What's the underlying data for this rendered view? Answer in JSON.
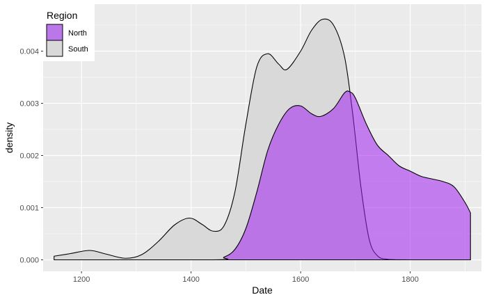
{
  "chart_data": {
    "type": "area",
    "xlabel": "Date",
    "ylabel": "density",
    "xlim": [
      1130,
      1930
    ],
    "ylim": [
      -0.00022,
      0.0049
    ],
    "x_ticks": [
      1200,
      1400,
      1600,
      1800
    ],
    "x_tick_labels": [
      "1200",
      "1400",
      "1600",
      "1800"
    ],
    "y_ticks": [
      0.0,
      0.001,
      0.002,
      0.003,
      0.004
    ],
    "y_tick_labels": [
      "0.000",
      "0.001",
      "0.002",
      "0.003",
      "0.004"
    ],
    "grid": true,
    "legend": {
      "title": "Region",
      "position": "top-left",
      "entries": [
        "North",
        "South"
      ]
    },
    "series": [
      {
        "name": "South",
        "fill": "#d9d9d9",
        "points": [
          [
            1150,
            7e-05
          ],
          [
            1180,
            0.00012
          ],
          [
            1215,
            0.00018
          ],
          [
            1245,
            0.00011
          ],
          [
            1280,
            3e-05
          ],
          [
            1310,
            0.0001
          ],
          [
            1340,
            0.00035
          ],
          [
            1370,
            0.00067
          ],
          [
            1397,
            0.0008
          ],
          [
            1420,
            0.00068
          ],
          [
            1440,
            0.00055
          ],
          [
            1460,
            0.00065
          ],
          [
            1480,
            0.0013
          ],
          [
            1500,
            0.0026
          ],
          [
            1520,
            0.0037
          ],
          [
            1540,
            0.00395
          ],
          [
            1560,
            0.00375
          ],
          [
            1575,
            0.00365
          ],
          [
            1600,
            0.004
          ],
          [
            1620,
            0.0044
          ],
          [
            1640,
            0.00461
          ],
          [
            1660,
            0.0045
          ],
          [
            1680,
            0.0039
          ],
          [
            1695,
            0.0028
          ],
          [
            1710,
            0.0014
          ],
          [
            1725,
            0.0004
          ],
          [
            1740,
            8e-05
          ],
          [
            1760,
            1e-05
          ],
          [
            1800,
            0.0
          ],
          [
            1910,
            0.0
          ]
        ]
      },
      {
        "name": "North",
        "fill": "#a020f0",
        "points": [
          [
            1150,
            0.0
          ],
          [
            1440,
            0.0
          ],
          [
            1460,
            5e-05
          ],
          [
            1480,
            0.0002
          ],
          [
            1500,
            0.0006
          ],
          [
            1520,
            0.0013
          ],
          [
            1540,
            0.0021
          ],
          [
            1560,
            0.0026
          ],
          [
            1580,
            0.0029
          ],
          [
            1600,
            0.00295
          ],
          [
            1620,
            0.0028
          ],
          [
            1637,
            0.00275
          ],
          [
            1660,
            0.0029
          ],
          [
            1680,
            0.0032
          ],
          [
            1690,
            0.00322
          ],
          [
            1700,
            0.0031
          ],
          [
            1720,
            0.0026
          ],
          [
            1740,
            0.0022
          ],
          [
            1760,
            0.002
          ],
          [
            1780,
            0.0018
          ],
          [
            1800,
            0.0017
          ],
          [
            1820,
            0.0016
          ],
          [
            1840,
            0.00155
          ],
          [
            1860,
            0.0015
          ],
          [
            1880,
            0.0014
          ],
          [
            1900,
            0.0011
          ],
          [
            1910,
            0.0009
          ]
        ]
      }
    ]
  }
}
